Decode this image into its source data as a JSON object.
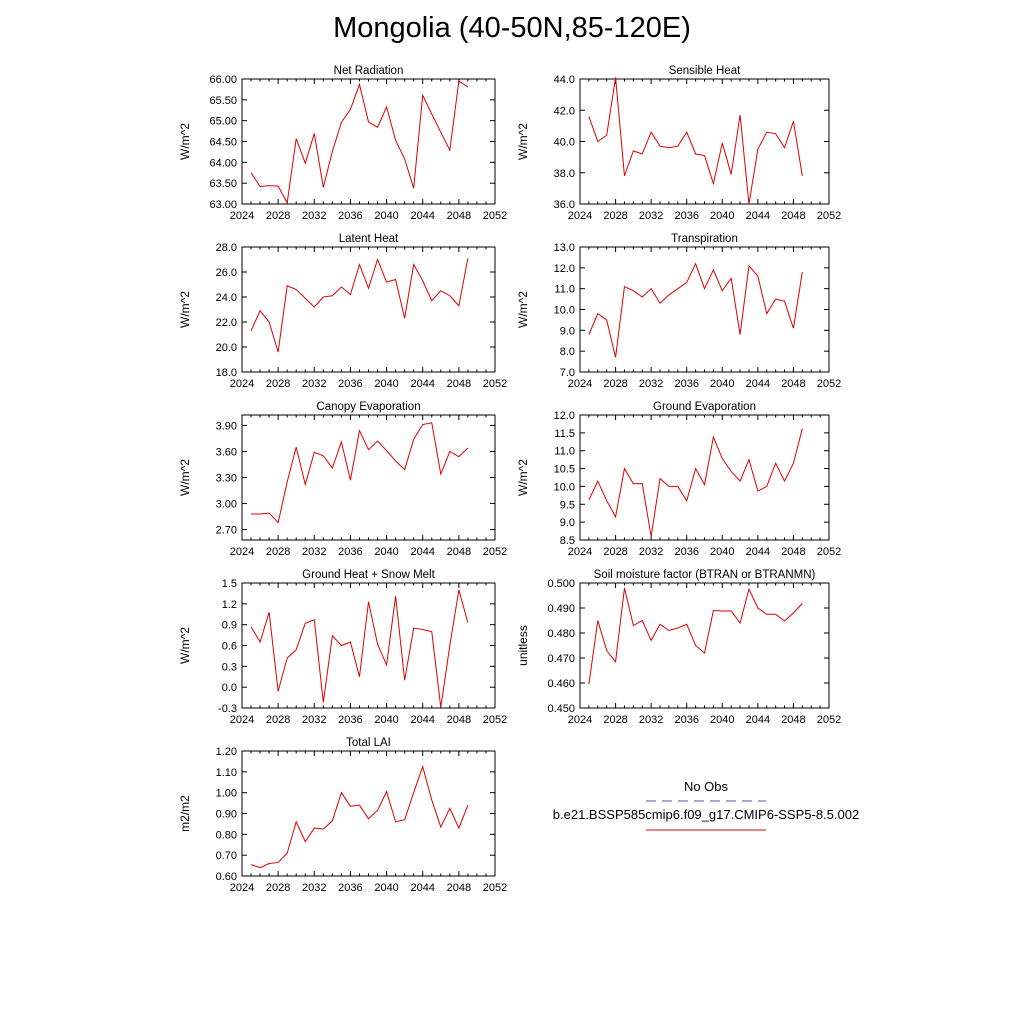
{
  "title": "Mongolia (40-50N,85-120E)",
  "legend": {
    "entries": [
      {
        "label": "No Obs",
        "color": "#5050b4",
        "dash": "dashed"
      },
      {
        "label": "b.e21.BSSP585cmip6.f09_g17.CMIP6-SSP5-8.5.002",
        "color": "#e00000",
        "dash": "solid"
      }
    ]
  },
  "chart_data": [
    {
      "type": "line",
      "title": "Net Radiation",
      "xlabel": "",
      "ylabel": "W/m^2",
      "xlim": [
        2024,
        2052
      ],
      "ylim": [
        63.0,
        66.0
      ],
      "xticks": [
        2024,
        2028,
        2032,
        2036,
        2040,
        2044,
        2048,
        2052
      ],
      "yticks": [
        63.0,
        63.5,
        64.0,
        64.5,
        65.0,
        65.5,
        66.0
      ],
      "ytick_labels": [
        "63.00",
        "63.50",
        "64.00",
        "64.50",
        "65.00",
        "65.50",
        "66.00"
      ],
      "x": [
        2025,
        2026,
        2027,
        2028,
        2029,
        2030,
        2031,
        2032,
        2033,
        2034,
        2035,
        2036,
        2037,
        2038,
        2039,
        2040,
        2041,
        2042,
        2043,
        2044,
        2045,
        2046,
        2047,
        2048,
        2049
      ],
      "series": [
        {
          "color": "#e00000",
          "values": [
            63.75,
            63.42,
            63.44,
            63.43,
            63.03,
            64.57,
            63.98,
            64.69,
            63.4,
            64.26,
            64.96,
            65.27,
            65.87,
            64.97,
            64.84,
            65.33,
            64.53,
            64.08,
            63.38,
            65.61,
            65.16,
            64.72,
            64.29,
            65.95,
            65.81
          ]
        }
      ]
    },
    {
      "type": "line",
      "title": "Sensible Heat",
      "xlabel": "",
      "ylabel": "W/m^2",
      "xlim": [
        2024,
        2052
      ],
      "ylim": [
        36.0,
        44.0
      ],
      "xticks": [
        2024,
        2028,
        2032,
        2036,
        2040,
        2044,
        2048,
        2052
      ],
      "yticks": [
        36,
        38,
        40,
        42,
        44
      ],
      "ytick_labels": [
        "36.0",
        "38.0",
        "40.0",
        "42.0",
        "44.0"
      ],
      "x": [
        2025,
        2026,
        2027,
        2028,
        2029,
        2030,
        2031,
        2032,
        2033,
        2034,
        2035,
        2036,
        2037,
        2038,
        2039,
        2040,
        2041,
        2042,
        2043,
        2044,
        2045,
        2046,
        2047,
        2048,
        2049
      ],
      "series": [
        {
          "color": "#e00000",
          "values": [
            41.6,
            40.0,
            40.4,
            44.1,
            37.8,
            39.4,
            39.2,
            40.6,
            39.7,
            39.6,
            39.7,
            40.6,
            39.2,
            39.1,
            37.3,
            39.9,
            37.9,
            41.7,
            36.0,
            39.5,
            40.6,
            40.5,
            39.6,
            41.3,
            37.8
          ]
        }
      ]
    },
    {
      "type": "line",
      "title": "Latent Heat",
      "xlabel": "",
      "ylabel": "W/m^2",
      "xlim": [
        2024,
        2052
      ],
      "ylim": [
        18.0,
        28.0
      ],
      "xticks": [
        2024,
        2028,
        2032,
        2036,
        2040,
        2044,
        2048,
        2052
      ],
      "yticks": [
        18,
        20,
        22,
        24,
        26,
        28
      ],
      "ytick_labels": [
        "18.0",
        "20.0",
        "22.0",
        "24.0",
        "26.0",
        "28.0"
      ],
      "x": [
        2025,
        2026,
        2027,
        2028,
        2029,
        2030,
        2031,
        2032,
        2033,
        2034,
        2035,
        2036,
        2037,
        2038,
        2039,
        2040,
        2041,
        2042,
        2043,
        2044,
        2045,
        2046,
        2047,
        2048,
        2049
      ],
      "series": [
        {
          "color": "#e00000",
          "values": [
            21.3,
            22.9,
            22.0,
            19.6,
            24.9,
            24.6,
            23.9,
            23.2,
            24.0,
            24.1,
            24.8,
            24.2,
            26.6,
            24.7,
            27.0,
            25.2,
            25.4,
            22.3,
            26.6,
            25.3,
            23.7,
            24.5,
            24.1,
            23.3,
            27.1
          ]
        }
      ]
    },
    {
      "type": "line",
      "title": "Transpiration",
      "xlabel": "",
      "ylabel": "W/m^2",
      "xlim": [
        2024,
        2052
      ],
      "ylim": [
        7.0,
        13.0
      ],
      "xticks": [
        2024,
        2028,
        2032,
        2036,
        2040,
        2044,
        2048,
        2052
      ],
      "yticks": [
        7,
        8,
        9,
        10,
        11,
        12,
        13
      ],
      "ytick_labels": [
        "7.0",
        "8.0",
        "9.0",
        "10.0",
        "11.0",
        "12.0",
        "13.0"
      ],
      "x": [
        2025,
        2026,
        2027,
        2028,
        2029,
        2030,
        2031,
        2032,
        2033,
        2034,
        2035,
        2036,
        2037,
        2038,
        2039,
        2040,
        2041,
        2042,
        2043,
        2044,
        2045,
        2046,
        2047,
        2048,
        2049
      ],
      "series": [
        {
          "color": "#e00000",
          "values": [
            8.8,
            9.8,
            9.5,
            7.7,
            11.1,
            10.9,
            10.6,
            11.0,
            10.3,
            10.7,
            11.0,
            11.3,
            12.2,
            11.0,
            11.9,
            10.9,
            11.5,
            8.8,
            12.1,
            11.6,
            9.8,
            10.5,
            10.4,
            9.1,
            11.8
          ]
        }
      ]
    },
    {
      "type": "line",
      "title": "Canopy Evaporation",
      "xlabel": "",
      "ylabel": "W/m^2",
      "xlim": [
        2024,
        2052
      ],
      "ylim": [
        2.58,
        4.02
      ],
      "xticks": [
        2024,
        2028,
        2032,
        2036,
        2040,
        2044,
        2048,
        2052
      ],
      "yticks": [
        2.7,
        3.0,
        3.3,
        3.6,
        3.9
      ],
      "ytick_labels": [
        "2.70",
        "3.00",
        "3.30",
        "3.60",
        "3.90"
      ],
      "x": [
        2025,
        2026,
        2027,
        2028,
        2029,
        2030,
        2031,
        2032,
        2033,
        2034,
        2035,
        2036,
        2037,
        2038,
        2039,
        2040,
        2041,
        2042,
        2043,
        2044,
        2045,
        2046,
        2047,
        2048,
        2049
      ],
      "series": [
        {
          "color": "#e00000",
          "values": [
            2.88,
            2.88,
            2.89,
            2.78,
            3.25,
            3.65,
            3.22,
            3.59,
            3.55,
            3.41,
            3.71,
            3.27,
            3.84,
            3.62,
            3.72,
            3.61,
            3.49,
            3.39,
            3.74,
            3.91,
            3.93,
            3.34,
            3.6,
            3.54,
            3.64
          ]
        }
      ]
    },
    {
      "type": "line",
      "title": "Ground Evaporation",
      "xlabel": "",
      "ylabel": "W/m^2",
      "xlim": [
        2024,
        2052
      ],
      "ylim": [
        8.5,
        12.0
      ],
      "xticks": [
        2024,
        2028,
        2032,
        2036,
        2040,
        2044,
        2048,
        2052
      ],
      "yticks": [
        8.5,
        9.0,
        9.5,
        10.0,
        10.5,
        11.0,
        11.5,
        12.0
      ],
      "ytick_labels": [
        "8.5",
        "9.0",
        "9.5",
        "10.0",
        "10.5",
        "11.0",
        "11.5",
        "12.0"
      ],
      "x": [
        2025,
        2026,
        2027,
        2028,
        2029,
        2030,
        2031,
        2032,
        2033,
        2034,
        2035,
        2036,
        2037,
        2038,
        2039,
        2040,
        2041,
        2042,
        2043,
        2044,
        2045,
        2046,
        2047,
        2048,
        2049
      ],
      "series": [
        {
          "color": "#e00000",
          "values": [
            9.62,
            10.15,
            9.6,
            9.15,
            10.5,
            10.08,
            10.08,
            8.6,
            10.22,
            10.0,
            10.0,
            9.6,
            10.5,
            10.05,
            11.38,
            10.78,
            10.42,
            10.15,
            10.75,
            9.87,
            10.0,
            10.65,
            10.15,
            10.65,
            11.62
          ]
        }
      ]
    },
    {
      "type": "line",
      "title": "Ground Heat + Snow Melt",
      "xlabel": "",
      "ylabel": "W/m^2",
      "xlim": [
        2024,
        2052
      ],
      "ylim": [
        -0.3,
        1.5
      ],
      "xticks": [
        2024,
        2028,
        2032,
        2036,
        2040,
        2044,
        2048,
        2052
      ],
      "yticks": [
        -0.3,
        0.0,
        0.3,
        0.6,
        0.9,
        1.2,
        1.5
      ],
      "ytick_labels": [
        "-0.3",
        "0.0",
        "0.3",
        "0.6",
        "0.9",
        "1.2",
        "1.5"
      ],
      "x": [
        2025,
        2026,
        2027,
        2028,
        2029,
        2030,
        2031,
        2032,
        2033,
        2034,
        2035,
        2036,
        2037,
        2038,
        2039,
        2040,
        2041,
        2042,
        2043,
        2044,
        2045,
        2046,
        2047,
        2048,
        2049
      ],
      "series": [
        {
          "color": "#e00000",
          "values": [
            0.87,
            0.65,
            1.08,
            -0.06,
            0.42,
            0.54,
            0.92,
            0.97,
            -0.22,
            0.74,
            0.6,
            0.65,
            0.15,
            1.23,
            0.62,
            0.32,
            1.31,
            0.1,
            0.85,
            0.83,
            0.8,
            -0.29,
            0.6,
            1.4,
            0.93
          ]
        }
      ]
    },
    {
      "type": "line",
      "title": "Soil moisture factor (BTRAN or BTRANMN)",
      "xlabel": "",
      "ylabel": "unitless",
      "xlim": [
        2024,
        2052
      ],
      "ylim": [
        0.45,
        0.5
      ],
      "xticks": [
        2024,
        2028,
        2032,
        2036,
        2040,
        2044,
        2048,
        2052
      ],
      "yticks": [
        0.45,
        0.46,
        0.47,
        0.48,
        0.49,
        0.5
      ],
      "ytick_labels": [
        "0.450",
        "0.460",
        "0.470",
        "0.480",
        "0.490",
        "0.500"
      ],
      "x": [
        2025,
        2026,
        2027,
        2028,
        2029,
        2030,
        2031,
        2032,
        2033,
        2034,
        2035,
        2036,
        2037,
        2038,
        2039,
        2040,
        2041,
        2042,
        2043,
        2044,
        2045,
        2046,
        2047,
        2048,
        2049
      ],
      "series": [
        {
          "color": "#e00000",
          "values": [
            0.4595,
            0.485,
            0.473,
            0.4685,
            0.498,
            0.483,
            0.485,
            0.477,
            0.4835,
            0.481,
            0.482,
            0.4835,
            0.475,
            0.472,
            0.489,
            0.4888,
            0.4888,
            0.484,
            0.4975,
            0.49,
            0.4875,
            0.4875,
            0.4848,
            0.488,
            0.4918
          ]
        }
      ]
    },
    {
      "type": "line",
      "title": "Total LAI",
      "xlabel": "",
      "ylabel": "m2/m2",
      "xlim": [
        2024,
        2052
      ],
      "ylim": [
        0.6,
        1.2
      ],
      "xticks": [
        2024,
        2028,
        2032,
        2036,
        2040,
        2044,
        2048,
        2052
      ],
      "yticks": [
        0.6,
        0.7,
        0.8,
        0.9,
        1.0,
        1.1,
        1.2
      ],
      "ytick_labels": [
        "0.60",
        "0.70",
        "0.80",
        "0.90",
        "1.00",
        "1.10",
        "1.20"
      ],
      "x": [
        2025,
        2026,
        2027,
        2028,
        2029,
        2030,
        2031,
        2032,
        2033,
        2034,
        2035,
        2036,
        2037,
        2038,
        2039,
        2040,
        2041,
        2042,
        2043,
        2044,
        2045,
        2046,
        2047,
        2048,
        2049
      ],
      "series": [
        {
          "color": "#e00000",
          "values": [
            0.655,
            0.64,
            0.66,
            0.665,
            0.71,
            0.86,
            0.765,
            0.83,
            0.825,
            0.865,
            1.0,
            0.935,
            0.94,
            0.875,
            0.915,
            1.005,
            0.86,
            0.87,
            1.0,
            1.125,
            0.965,
            0.835,
            0.925,
            0.83,
            0.94
          ]
        }
      ]
    }
  ]
}
